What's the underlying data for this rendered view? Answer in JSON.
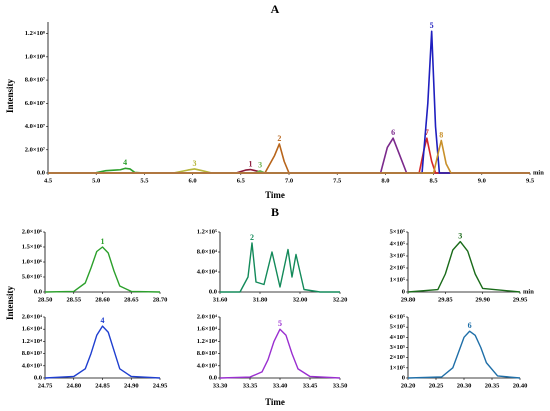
{
  "chart_data": [
    {
      "type": "line",
      "title": "A",
      "x_label": "Time",
      "y_label": "Intensity",
      "x_unit": "min",
      "xlim": [
        4.5,
        9.5
      ],
      "xticks": [
        4.5,
        {
          "value": 5,
          "label": "5.0"
        },
        5.5,
        {
          "value": 6,
          "label": "6.0"
        },
        6.5,
        {
          "value": 7,
          "label": "7.0"
        },
        7.5,
        {
          "value": 8,
          "label": "8.0"
        },
        8.5,
        {
          "value": 9,
          "label": "9.0"
        },
        9.5
      ],
      "ylim": [
        0,
        130000000
      ],
      "yticks": [
        {
          "value": 0,
          "label": "0.0"
        },
        {
          "value": 20000000,
          "label": "2.0×10⁷"
        },
        {
          "value": 40000000,
          "label": "4.0×10⁷"
        },
        {
          "value": 60000000,
          "label": "6.0×10⁷"
        },
        {
          "value": 80000000,
          "label": "8.0×10⁷"
        },
        {
          "value": 100000000,
          "label": "1.0×10⁸"
        },
        {
          "value": 120000000,
          "label": "1.2×10⁸"
        }
      ],
      "series": [
        {
          "name": "4",
          "color": "#2ca02c",
          "x": [
            4.5,
            5.0,
            5.1,
            5.2,
            5.25,
            5.3,
            5.35,
            5.4,
            5.5,
            9.5
          ],
          "values": [
            0,
            300000,
            2000000,
            2500000,
            2800000,
            4000000,
            3500000,
            500000,
            0,
            0
          ]
        },
        {
          "name": "3",
          "color": "#b5b53a",
          "x": [
            4.5,
            5.8,
            5.95,
            6.02,
            6.1,
            6.2,
            9.5
          ],
          "values": [
            0,
            0,
            2500000,
            3500000,
            2000000,
            0,
            0
          ]
        },
        {
          "name": "1",
          "color": "#8b1a3a",
          "x": [
            4.5,
            6.45,
            6.55,
            6.6,
            6.65,
            6.75,
            9.5
          ],
          "values": [
            0,
            0,
            2500000,
            3000000,
            2000000,
            0,
            0
          ]
        },
        {
          "name": "3",
          "color": "#6ab04c",
          "x": [
            4.5,
            6.65,
            6.7,
            6.75,
            9.5
          ],
          "values": [
            0,
            0,
            1800000,
            0,
            0
          ]
        },
        {
          "name": "2",
          "color": "#b8651b",
          "x": [
            4.5,
            6.75,
            6.85,
            6.9,
            6.95,
            7.0,
            9.5
          ],
          "values": [
            0,
            0,
            15000000,
            25000000,
            10000000,
            0,
            0
          ]
        },
        {
          "name": "6",
          "color": "#7b2a8c",
          "x": [
            4.5,
            7.95,
            8.02,
            8.08,
            8.15,
            8.22,
            9.5
          ],
          "values": [
            0,
            0,
            22000000,
            30000000,
            15000000,
            0,
            0
          ]
        },
        {
          "name": "7",
          "color": "#d62728",
          "x": [
            4.5,
            8.35,
            8.4,
            8.43,
            8.48,
            8.52,
            9.5
          ],
          "values": [
            0,
            0,
            20000000,
            30000000,
            10000000,
            0,
            0
          ]
        },
        {
          "name": "5",
          "color": "#1f1fbf",
          "x": [
            4.5,
            8.38,
            8.44,
            8.48,
            8.52,
            8.56,
            9.5
          ],
          "values": [
            0,
            0,
            60000000,
            122000000,
            40000000,
            0,
            0
          ]
        },
        {
          "name": "8",
          "color": "#c8902a",
          "x": [
            4.5,
            8.5,
            8.55,
            8.58,
            8.63,
            8.68,
            9.5
          ],
          "values": [
            0,
            0,
            18000000,
            28000000,
            8000000,
            0,
            0
          ]
        }
      ]
    },
    {
      "type": "line",
      "xlim": [
        28.5,
        28.7
      ],
      "xticks": [
        {
          "value": 28.5,
          "label": "28.50"
        },
        28.55,
        {
          "value": 28.6,
          "label": "28.60"
        },
        28.65,
        {
          "value": 28.7,
          "label": "28.70"
        }
      ],
      "ylim": [
        0,
        2000000
      ],
      "yticks": [
        {
          "value": 0,
          "label": "0.0"
        },
        {
          "value": 500000,
          "label": "5.0×10⁵"
        },
        {
          "value": 1000000,
          "label": "1.0×10⁶"
        },
        {
          "value": 1500000,
          "label": "1.5×10⁶"
        },
        {
          "value": 2000000,
          "label": "2.0×10⁶"
        }
      ],
      "series": [
        {
          "name": "1",
          "color": "#2ca02c",
          "x": [
            28.5,
            28.55,
            28.57,
            28.58,
            28.59,
            28.6,
            28.61,
            28.62,
            28.63,
            28.65,
            28.7
          ],
          "values": [
            0,
            20000,
            300000,
            800000,
            1350000,
            1500000,
            1300000,
            700000,
            200000,
            20000,
            0
          ]
        }
      ]
    },
    {
      "type": "line",
      "xlim": [
        31.6,
        32.2
      ],
      "xticks": [
        {
          "value": 31.6,
          "label": "31.60"
        },
        {
          "value": 31.8,
          "label": "31.80"
        },
        {
          "value": 32,
          "label": "32.00"
        },
        {
          "value": 32.2,
          "label": "32.20"
        }
      ],
      "ylim": [
        0,
        120000
      ],
      "yticks": [
        {
          "value": 0,
          "label": "0.0"
        },
        {
          "value": 40000,
          "label": "4.0×10⁴"
        },
        {
          "value": 80000,
          "label": "8.0×10⁴"
        },
        {
          "value": 120000,
          "label": "1.2×10⁵"
        }
      ],
      "series": [
        {
          "name": "2",
          "color": "#138a5a",
          "x": [
            31.6,
            31.7,
            31.74,
            31.76,
            31.78,
            31.82,
            31.86,
            31.9,
            31.94,
            31.96,
            31.98,
            32.02,
            32.1,
            32.2
          ],
          "values": [
            0,
            0,
            30000,
            98000,
            20000,
            15000,
            80000,
            10000,
            85000,
            30000,
            75000,
            5000,
            0,
            0
          ]
        }
      ]
    },
    {
      "type": "line",
      "x_unit": "min",
      "xlim": [
        29.8,
        29.95
      ],
      "xticks": [
        {
          "value": 29.8,
          "label": "29.80"
        },
        29.85,
        {
          "value": 29.9,
          "label": "29.90"
        },
        29.95
      ],
      "ylim": [
        0,
        500000
      ],
      "yticks": [
        0,
        {
          "value": 100000,
          "label": "1×10⁵"
        },
        {
          "value": 200000,
          "label": "2×10⁵"
        },
        {
          "value": 300000,
          "label": "3×10⁵"
        },
        {
          "value": 400000,
          "label": "4×10⁵"
        },
        {
          "value": 500000,
          "label": "5×10⁵"
        }
      ],
      "series": [
        {
          "name": "3",
          "color": "#1a6b1a",
          "x": [
            29.8,
            29.84,
            29.85,
            29.86,
            29.87,
            29.88,
            29.89,
            29.9,
            29.95
          ],
          "values": [
            0,
            20000,
            150000,
            350000,
            420000,
            340000,
            150000,
            30000,
            0
          ]
        }
      ]
    },
    {
      "type": "line",
      "xlim": [
        24.75,
        24.95
      ],
      "xticks": [
        24.75,
        {
          "value": 24.8,
          "label": "24.80"
        },
        24.85,
        {
          "value": 24.9,
          "label": "24.90"
        },
        24.95
      ],
      "ylim": [
        0,
        20000
      ],
      "yticks": [
        {
          "value": 0,
          "label": "0.0"
        },
        {
          "value": 4000,
          "label": "4.0×10³"
        },
        {
          "value": 8000,
          "label": "8.0×10³"
        },
        {
          "value": 12000,
          "label": "1.2×10⁴"
        },
        {
          "value": 16000,
          "label": "1.6×10⁴"
        },
        {
          "value": 20000,
          "label": "2.0×10⁴"
        }
      ],
      "series": [
        {
          "name": "4",
          "color": "#1f3fd0",
          "x": [
            24.75,
            24.8,
            24.82,
            24.83,
            24.84,
            24.85,
            24.86,
            24.87,
            24.88,
            24.9,
            24.95
          ],
          "values": [
            0,
            500,
            3000,
            8000,
            14000,
            17000,
            15000,
            9000,
            3000,
            500,
            0
          ]
        }
      ]
    },
    {
      "type": "line",
      "xlim": [
        33.3,
        33.5
      ],
      "xticks": [
        {
          "value": 33.3,
          "label": "33.30"
        },
        33.35,
        {
          "value": 33.4,
          "label": "33.40"
        },
        33.45,
        {
          "value": 33.5,
          "label": "33.50"
        }
      ],
      "ylim": [
        0,
        20000
      ],
      "yticks": [
        {
          "value": 0,
          "label": "0.0"
        },
        {
          "value": 4000,
          "label": "4.0×10³"
        },
        {
          "value": 8000,
          "label": "8.0×10³"
        },
        {
          "value": 12000,
          "label": "1.2×10⁴"
        },
        {
          "value": 16000,
          "label": "1.6×10⁴"
        },
        {
          "value": 20000,
          "label": "2.0×10⁴"
        }
      ],
      "series": [
        {
          "name": "5",
          "color": "#9a2fd0",
          "x": [
            33.3,
            33.35,
            33.37,
            33.38,
            33.39,
            33.4,
            33.41,
            33.42,
            33.43,
            33.45,
            33.5
          ],
          "values": [
            0,
            300,
            2000,
            6000,
            12000,
            16000,
            14000,
            8000,
            3000,
            500,
            0
          ]
        }
      ]
    },
    {
      "type": "line",
      "xlim": [
        20.2,
        20.4
      ],
      "xticks": [
        {
          "value": 20.2,
          "label": "20.20"
        },
        20.25,
        {
          "value": 20.3,
          "label": "20.30"
        },
        20.35,
        {
          "value": 20.4,
          "label": "20.40"
        }
      ],
      "ylim": [
        0,
        600000
      ],
      "yticks": [
        0,
        {
          "value": 100000,
          "label": "1×10⁵"
        },
        {
          "value": 200000,
          "label": "2×10⁵"
        },
        {
          "value": 300000,
          "label": "3×10⁵"
        },
        {
          "value": 400000,
          "label": "4×10⁵"
        },
        {
          "value": 500000,
          "label": "5×10⁵"
        },
        {
          "value": 600000,
          "label": "6×10⁵"
        }
      ],
      "series": [
        {
          "name": "6",
          "color": "#1f6fa8",
          "x": [
            20.2,
            20.26,
            20.28,
            20.29,
            20.3,
            20.31,
            20.32,
            20.33,
            20.34,
            20.36,
            20.4
          ],
          "values": [
            0,
            10000,
            100000,
            250000,
            400000,
            460000,
            420000,
            300000,
            150000,
            20000,
            0
          ]
        }
      ]
    }
  ],
  "panel_b": {
    "title": "B",
    "x_label": "Time",
    "y_label": "Intensity"
  }
}
